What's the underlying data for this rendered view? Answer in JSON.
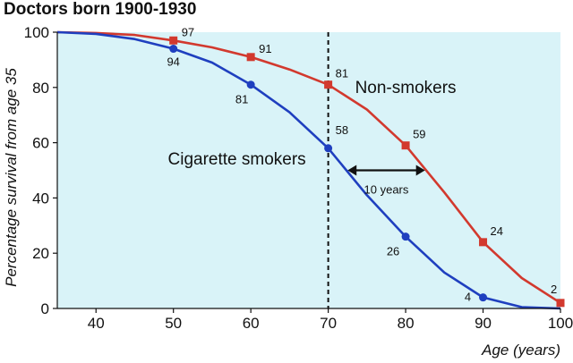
{
  "chart_data": {
    "type": "line",
    "title": "Doctors born 1900-1930",
    "xlabel": "Age (years)",
    "ylabel": "Percentage survival from age 35",
    "xlim": [
      35,
      100
    ],
    "ylim": [
      0,
      100
    ],
    "x_ticks": [
      "40",
      "50",
      "60",
      "70",
      "80",
      "90",
      "100"
    ],
    "y_ticks": [
      "0",
      "20",
      "40",
      "60",
      "80",
      "100"
    ],
    "grid": false,
    "background": "#d9f3f8",
    "series": [
      {
        "name": "Non-smokers",
        "color": "#d2392e",
        "marker": "square",
        "points": [
          [
            35,
            100
          ],
          [
            40,
            99.7
          ],
          [
            45,
            99
          ],
          [
            50,
            97
          ],
          [
            55,
            94.5
          ],
          [
            60,
            91
          ],
          [
            65,
            86.5
          ],
          [
            70,
            81
          ],
          [
            75,
            72
          ],
          [
            80,
            59
          ],
          [
            85,
            42
          ],
          [
            90,
            24
          ],
          [
            95,
            11
          ],
          [
            100,
            2
          ]
        ],
        "labeled": [
          {
            "x": 50,
            "y": 97,
            "label": "97"
          },
          {
            "x": 60,
            "y": 91,
            "label": "91"
          },
          {
            "x": 70,
            "y": 81,
            "label": "81"
          },
          {
            "x": 80,
            "y": 59,
            "label": "59"
          },
          {
            "x": 90,
            "y": 24,
            "label": "24"
          },
          {
            "x": 100,
            "y": 2,
            "label": "2"
          }
        ]
      },
      {
        "name": "Cigarette smokers",
        "color": "#1f3fbf",
        "marker": "circle",
        "points": [
          [
            35,
            100
          ],
          [
            40,
            99.4
          ],
          [
            45,
            97.5
          ],
          [
            50,
            94
          ],
          [
            55,
            89
          ],
          [
            60,
            81
          ],
          [
            65,
            71
          ],
          [
            70,
            58
          ],
          [
            75,
            41
          ],
          [
            80,
            26
          ],
          [
            85,
            13
          ],
          [
            90,
            4
          ],
          [
            95,
            0.5
          ],
          [
            100,
            0
          ]
        ],
        "labeled": [
          {
            "x": 50,
            "y": 94,
            "label": "94"
          },
          {
            "x": 60,
            "y": 81,
            "label": "81"
          },
          {
            "x": 70,
            "y": 58,
            "label": "58"
          },
          {
            "x": 80,
            "y": 26,
            "label": "26"
          },
          {
            "x": 90,
            "y": 4,
            "label": "4"
          }
        ]
      }
    ],
    "reference_line": {
      "x": 70,
      "style": "dashed"
    },
    "annotation": {
      "text": "10 years",
      "y": 50,
      "x_from": 72.5,
      "x_to": 82.5
    }
  }
}
